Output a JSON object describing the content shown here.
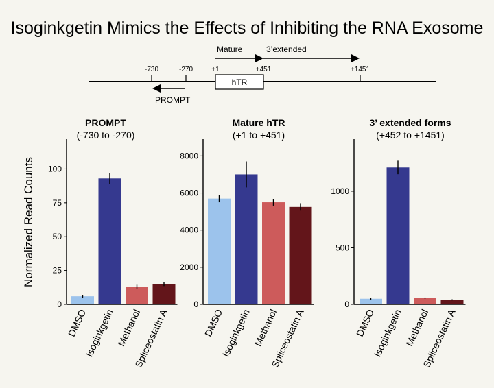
{
  "title": "Isoginkgetin Mimics the Effects of Inhibiting the RNA Exosome",
  "ylabel": "Normalized Read Counts",
  "gene_map": {
    "positions": [
      "-730",
      "-270",
      "+1",
      "+451",
      "+1451"
    ],
    "box_label": "hTR",
    "mature_label": "Mature",
    "extended_label": "3’extended",
    "prompt_label": "PROMPT"
  },
  "colors": {
    "DMSO": "#9cc3ec",
    "Isoginkgetin": "#35398f",
    "Methanol": "#cd5b5b",
    "Spliceostatin A": "#63151a"
  },
  "chart_data": [
    {
      "type": "bar",
      "title": "PROMPT",
      "subtitle": "(-730 to -270)",
      "categories": [
        "DMSO",
        "Isoginkgetin",
        "Methanol",
        "Spliceostatin A"
      ],
      "values": [
        6,
        93,
        13,
        15
      ],
      "errors": [
        1,
        4,
        1.5,
        1.5
      ],
      "yticks": [
        0,
        25,
        50,
        75,
        100
      ],
      "ylim": [
        0,
        122
      ]
    },
    {
      "type": "bar",
      "title": "Mature hTR",
      "subtitle": "(+1 to +451)",
      "categories": [
        "DMSO",
        "Isoginkgetin",
        "Methanol",
        "Spliceostatin A"
      ],
      "values": [
        5700,
        7000,
        5500,
        5250
      ],
      "errors": [
        200,
        700,
        180,
        200
      ],
      "yticks": [
        0,
        2000,
        4000,
        6000,
        8000
      ],
      "ylim": [
        0,
        8900
      ]
    },
    {
      "type": "bar",
      "title": "3’ extended forms",
      "subtitle": "(+452 to +1451)",
      "categories": [
        "DMSO",
        "Isoginkgetin",
        "Methanol",
        "Spliceostatin A"
      ],
      "values": [
        50,
        1210,
        55,
        40
      ],
      "errors": [
        8,
        60,
        6,
        5
      ],
      "yticks": [
        0,
        500,
        1000
      ],
      "ylim": [
        0,
        1460
      ]
    }
  ]
}
